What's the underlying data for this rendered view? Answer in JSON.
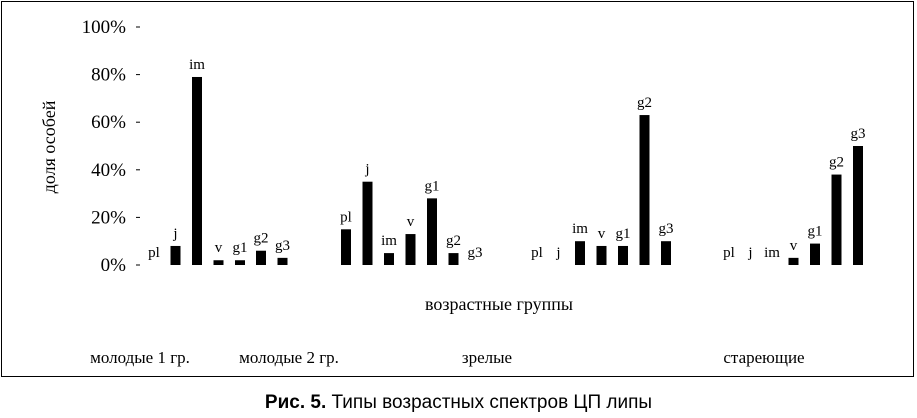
{
  "chart_data": {
    "type": "bar",
    "ylabel": "доля особей",
    "xlabel": "возрастные группы",
    "ylim": [
      0,
      100
    ],
    "yticks": [
      "0%",
      "20%",
      "40%",
      "60%",
      "80%",
      "100%"
    ],
    "grid": false,
    "groups": [
      {
        "name": "молодые 1 гр.",
        "bars": [
          {
            "label": "pl",
            "value": 0
          },
          {
            "label": "j",
            "value": 8
          },
          {
            "label": "im",
            "value": 79
          },
          {
            "label": "v",
            "value": 2
          },
          {
            "label": "g1",
            "value": 2
          }
        ]
      },
      {
        "name": "молодые 2 гр.",
        "bars": [
          {
            "label": "g2",
            "value": 6
          },
          {
            "label": "g3",
            "value": 3
          }
        ]
      },
      {
        "name": "зрелые",
        "bars": [
          {
            "label": "pl",
            "value": 15
          },
          {
            "label": "j",
            "value": 35
          },
          {
            "label": "im",
            "value": 5
          },
          {
            "label": "v",
            "value": 13
          },
          {
            "label": "g1",
            "value": 28
          },
          {
            "label": "g2",
            "value": 5
          },
          {
            "label": "g3",
            "value": 0
          }
        ]
      },
      {
        "name": "",
        "bars": [
          {
            "label": "pl",
            "value": 0
          },
          {
            "label": "j",
            "value": 0
          },
          {
            "label": "im",
            "value": 10
          },
          {
            "label": "v",
            "value": 8
          },
          {
            "label": "g1",
            "value": 8
          },
          {
            "label": "g2",
            "value": 63
          },
          {
            "label": "g3",
            "value": 10
          }
        ]
      },
      {
        "name": "стареющие",
        "bars": [
          {
            "label": "pl",
            "value": 0
          },
          {
            "label": "j",
            "value": 0
          },
          {
            "label": "im",
            "value": 0
          },
          {
            "label": "v",
            "value": 3
          },
          {
            "label": "g1",
            "value": 9
          },
          {
            "label": "g2",
            "value": 38
          },
          {
            "label": "g3",
            "value": 50
          }
        ]
      }
    ]
  },
  "caption": {
    "number": "Рис. 5.",
    "text": " Типы возрастных спектров ЦП липы"
  }
}
